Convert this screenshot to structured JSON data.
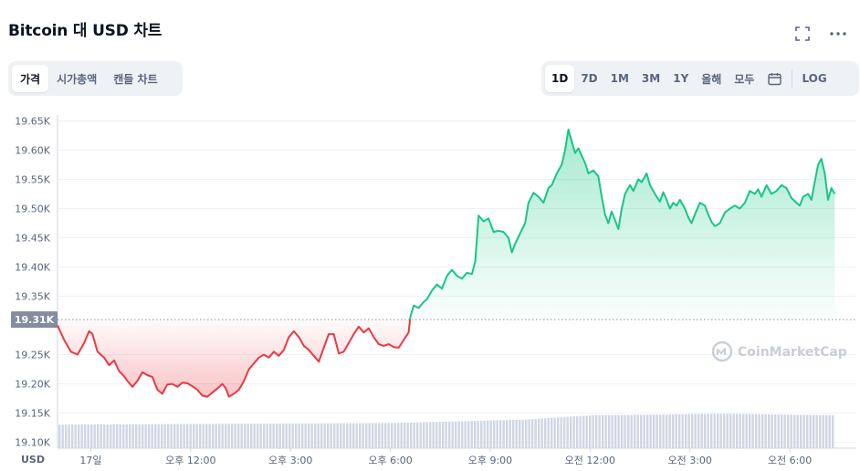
{
  "header": {
    "title": "Bitcoin 대 USD 차트",
    "fullscreen_icon": "expand-icon",
    "more_icon": "more-horizontal-icon"
  },
  "tabs": {
    "items": [
      "가격",
      "시가총액",
      "캔들 차트"
    ],
    "active": "가격"
  },
  "ranges": {
    "items": [
      "1D",
      "7D",
      "1M",
      "3M",
      "1Y",
      "올해",
      "모두"
    ],
    "active": "1D",
    "calendar_icon": "calendar-icon",
    "log_label": "LOG"
  },
  "watermark": "CoinMarketCap",
  "colors": {
    "up": "#16c784",
    "down": "#ea3943",
    "grid": "#eff2f5",
    "volume": "#cfd6e4",
    "baseline_badge": "#858ca2"
  },
  "chart_data": {
    "type": "area",
    "ylabel": "USD",
    "ylim": [
      19.09,
      19.66
    ],
    "yticks": [
      {
        "value": 19.65,
        "label": "19.65K"
      },
      {
        "value": 19.6,
        "label": "19.60K"
      },
      {
        "value": 19.55,
        "label": "19.55K"
      },
      {
        "value": 19.5,
        "label": "19.50K"
      },
      {
        "value": 19.45,
        "label": "19.45K"
      },
      {
        "value": 19.4,
        "label": "19.40K"
      },
      {
        "value": 19.35,
        "label": "19.35K"
      },
      {
        "value": 19.25,
        "label": "19.25K"
      },
      {
        "value": 19.2,
        "label": "19.20K"
      },
      {
        "value": 19.15,
        "label": "19.15K"
      },
      {
        "value": 19.1,
        "label": "19.10K"
      }
    ],
    "baseline": {
      "value": 19.31,
      "label": "19.31K"
    },
    "xlim": [
      -1.0,
      23.0
    ],
    "xticks": [
      {
        "value": 0.0,
        "label": "17일"
      },
      {
        "value": 3.0,
        "label": "오후 12:00"
      },
      {
        "value": 6.0,
        "label": "오후 3:00"
      },
      {
        "value": 9.0,
        "label": "오후 6:00"
      },
      {
        "value": 12.0,
        "label": "오후 9:00"
      },
      {
        "value": 15.0,
        "label": "오전 12:00"
      },
      {
        "value": 18.0,
        "label": "오전 3:00"
      },
      {
        "value": 21.0,
        "label": "오전 6:00"
      }
    ],
    "price": [
      [
        -1.0,
        19.3
      ],
      [
        -0.8,
        19.275
      ],
      [
        -0.6,
        19.255
      ],
      [
        -0.4,
        19.25
      ],
      [
        -0.2,
        19.27
      ],
      [
        -0.05,
        19.29
      ],
      [
        0.05,
        19.285
      ],
      [
        0.2,
        19.255
      ],
      [
        0.4,
        19.245
      ],
      [
        0.55,
        19.232
      ],
      [
        0.7,
        19.24
      ],
      [
        0.85,
        19.222
      ],
      [
        1.0,
        19.213
      ],
      [
        1.1,
        19.205
      ],
      [
        1.25,
        19.195
      ],
      [
        1.4,
        19.205
      ],
      [
        1.55,
        19.22
      ],
      [
        1.7,
        19.215
      ],
      [
        1.85,
        19.212
      ],
      [
        2.0,
        19.19
      ],
      [
        2.15,
        19.183
      ],
      [
        2.3,
        19.199
      ],
      [
        2.45,
        19.2
      ],
      [
        2.6,
        19.195
      ],
      [
        2.75,
        19.202
      ],
      [
        2.9,
        19.201
      ],
      [
        3.05,
        19.196
      ],
      [
        3.2,
        19.19
      ],
      [
        3.35,
        19.18
      ],
      [
        3.5,
        19.178
      ],
      [
        3.65,
        19.185
      ],
      [
        3.8,
        19.192
      ],
      [
        3.95,
        19.2
      ],
      [
        4.05,
        19.193
      ],
      [
        4.15,
        19.178
      ],
      [
        4.3,
        19.183
      ],
      [
        4.45,
        19.19
      ],
      [
        4.6,
        19.205
      ],
      [
        4.75,
        19.225
      ],
      [
        4.9,
        19.235
      ],
      [
        5.05,
        19.245
      ],
      [
        5.2,
        19.25
      ],
      [
        5.35,
        19.245
      ],
      [
        5.5,
        19.255
      ],
      [
        5.65,
        19.248
      ],
      [
        5.8,
        19.258
      ],
      [
        5.95,
        19.28
      ],
      [
        6.1,
        19.29
      ],
      [
        6.25,
        19.28
      ],
      [
        6.4,
        19.265
      ],
      [
        6.55,
        19.258
      ],
      [
        6.7,
        19.248
      ],
      [
        6.85,
        19.238
      ],
      [
        7.0,
        19.262
      ],
      [
        7.15,
        19.285
      ],
      [
        7.3,
        19.285
      ],
      [
        7.45,
        19.252
      ],
      [
        7.6,
        19.255
      ],
      [
        7.75,
        19.27
      ],
      [
        7.9,
        19.285
      ],
      [
        8.05,
        19.298
      ],
      [
        8.2,
        19.288
      ],
      [
        8.35,
        19.295
      ],
      [
        8.5,
        19.28
      ],
      [
        8.65,
        19.268
      ],
      [
        8.8,
        19.265
      ],
      [
        8.95,
        19.268
      ],
      [
        9.1,
        19.263
      ],
      [
        9.25,
        19.262
      ],
      [
        9.4,
        19.275
      ],
      [
        9.55,
        19.288
      ],
      [
        9.6,
        19.315
      ],
      [
        9.7,
        19.334
      ],
      [
        9.85,
        19.33
      ],
      [
        10.0,
        19.34
      ],
      [
        10.1,
        19.345
      ],
      [
        10.25,
        19.36
      ],
      [
        10.4,
        19.37
      ],
      [
        10.55,
        19.363
      ],
      [
        10.7,
        19.385
      ],
      [
        10.85,
        19.395
      ],
      [
        11.0,
        19.385
      ],
      [
        11.15,
        19.38
      ],
      [
        11.3,
        19.39
      ],
      [
        11.45,
        19.388
      ],
      [
        11.55,
        19.41
      ],
      [
        11.65,
        19.488
      ],
      [
        11.8,
        19.478
      ],
      [
        11.95,
        19.483
      ],
      [
        12.1,
        19.46
      ],
      [
        12.25,
        19.462
      ],
      [
        12.4,
        19.46
      ],
      [
        12.55,
        19.45
      ],
      [
        12.65,
        19.425
      ],
      [
        12.75,
        19.44
      ],
      [
        12.9,
        19.458
      ],
      [
        13.05,
        19.475
      ],
      [
        13.15,
        19.51
      ],
      [
        13.3,
        19.527
      ],
      [
        13.45,
        19.52
      ],
      [
        13.6,
        19.51
      ],
      [
        13.75,
        19.535
      ],
      [
        13.85,
        19.54
      ],
      [
        14.0,
        19.56
      ],
      [
        14.15,
        19.575
      ],
      [
        14.25,
        19.6
      ],
      [
        14.35,
        19.635
      ],
      [
        14.45,
        19.615
      ],
      [
        14.55,
        19.595
      ],
      [
        14.65,
        19.603
      ],
      [
        14.75,
        19.59
      ],
      [
        14.85,
        19.578
      ],
      [
        14.95,
        19.56
      ],
      [
        15.1,
        19.565
      ],
      [
        15.25,
        19.555
      ],
      [
        15.35,
        19.52
      ],
      [
        15.45,
        19.49
      ],
      [
        15.55,
        19.475
      ],
      [
        15.65,
        19.495
      ],
      [
        15.75,
        19.48
      ],
      [
        15.85,
        19.465
      ],
      [
        15.95,
        19.5
      ],
      [
        16.05,
        19.525
      ],
      [
        16.2,
        19.54
      ],
      [
        16.3,
        19.53
      ],
      [
        16.45,
        19.55
      ],
      [
        16.55,
        19.545
      ],
      [
        16.7,
        19.56
      ],
      [
        16.8,
        19.54
      ],
      [
        16.9,
        19.53
      ],
      [
        17.0,
        19.52
      ],
      [
        17.1,
        19.512
      ],
      [
        17.2,
        19.528
      ],
      [
        17.3,
        19.515
      ],
      [
        17.4,
        19.5
      ],
      [
        17.5,
        19.51
      ],
      [
        17.6,
        19.505
      ],
      [
        17.7,
        19.515
      ],
      [
        17.85,
        19.5
      ],
      [
        17.95,
        19.485
      ],
      [
        18.05,
        19.475
      ],
      [
        18.15,
        19.49
      ],
      [
        18.3,
        19.51
      ],
      [
        18.45,
        19.505
      ],
      [
        18.55,
        19.49
      ],
      [
        18.65,
        19.477
      ],
      [
        18.75,
        19.47
      ],
      [
        18.9,
        19.475
      ],
      [
        19.05,
        19.493
      ],
      [
        19.2,
        19.5
      ],
      [
        19.35,
        19.505
      ],
      [
        19.5,
        19.5
      ],
      [
        19.65,
        19.51
      ],
      [
        19.8,
        19.53
      ],
      [
        19.95,
        19.525
      ],
      [
        20.05,
        19.533
      ],
      [
        20.15,
        19.52
      ],
      [
        20.3,
        19.54
      ],
      [
        20.45,
        19.525
      ],
      [
        20.6,
        19.53
      ],
      [
        20.75,
        19.54
      ],
      [
        20.9,
        19.535
      ],
      [
        21.05,
        19.518
      ],
      [
        21.2,
        19.51
      ],
      [
        21.3,
        19.505
      ],
      [
        21.4,
        19.52
      ],
      [
        21.55,
        19.525
      ],
      [
        21.65,
        19.515
      ],
      [
        21.75,
        19.545
      ],
      [
        21.85,
        19.575
      ],
      [
        21.95,
        19.585
      ],
      [
        22.05,
        19.56
      ],
      [
        22.15,
        19.515
      ],
      [
        22.25,
        19.535
      ],
      [
        22.35,
        19.525
      ]
    ],
    "volume_trend": [
      [
        -1.0,
        0.28
      ],
      [
        9.0,
        0.3
      ],
      [
        13.0,
        0.34
      ],
      [
        15.0,
        0.39
      ],
      [
        19.0,
        0.41
      ],
      [
        22.35,
        0.39
      ]
    ]
  }
}
